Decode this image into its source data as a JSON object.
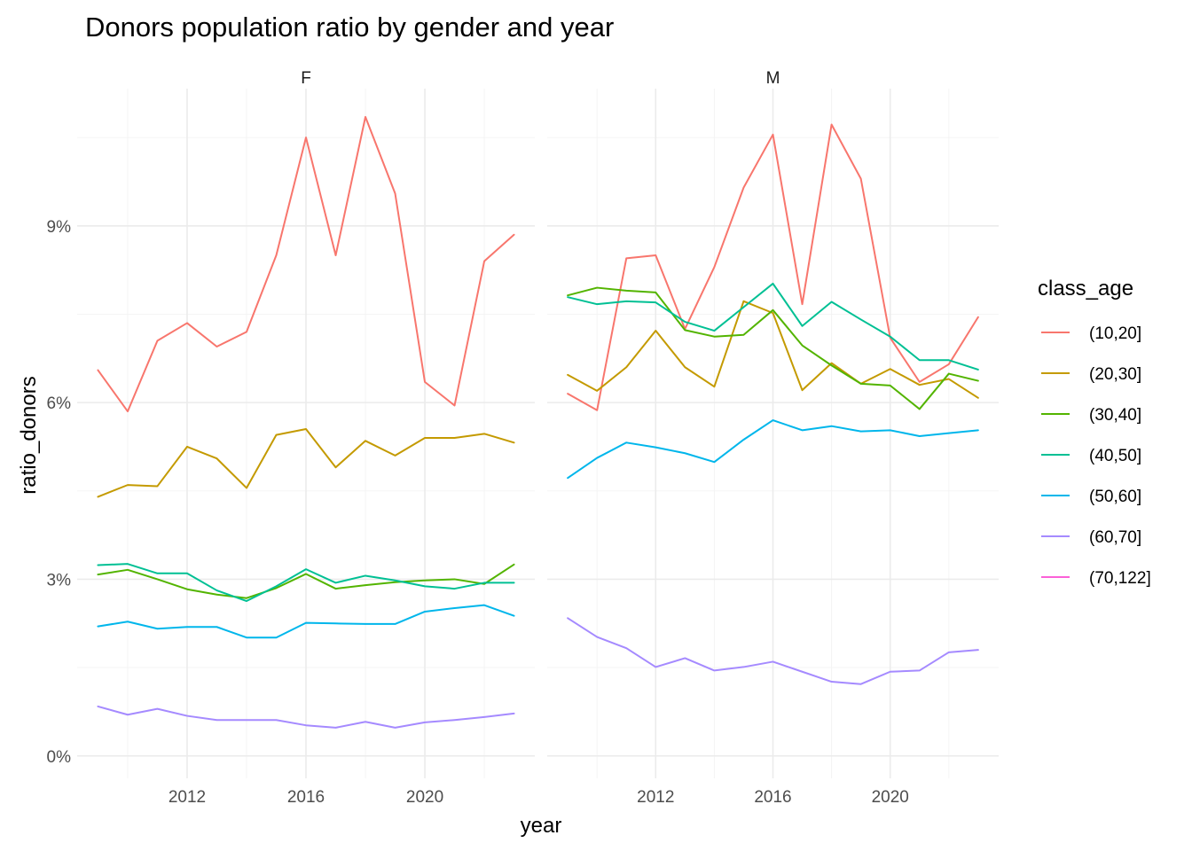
{
  "chart_data": {
    "type": "line",
    "title": "Donors population ratio by gender and year",
    "xlabel": "year",
    "ylabel": "ratio_donors",
    "x": [
      2009,
      2010,
      2011,
      2012,
      2013,
      2014,
      2015,
      2016,
      2017,
      2018,
      2019,
      2020,
      2021,
      2022,
      2023
    ],
    "xlim": [
      2008.3,
      2023.7
    ],
    "x_ticks": [
      2012,
      2016,
      2020
    ],
    "x_tick_labels": [
      "2012",
      "2016",
      "2020"
    ],
    "ylim": [
      -0.0038,
      0.1133
    ],
    "y_ticks": [
      0,
      0.03,
      0.06,
      0.09
    ],
    "y_tick_labels": [
      "0%",
      "3%",
      "6%",
      "9%"
    ],
    "grid": true,
    "legend": {
      "title": "class_age",
      "position": "right",
      "items": [
        "(10,20]",
        "(20,30]",
        "(30,40]",
        "(40,50]",
        "(50,60]",
        "(60,70]",
        "(70,122]"
      ]
    },
    "colors": {
      "(10,20]": "#F8766D",
      "(20,30]": "#C49A00",
      "(30,40]": "#53B400",
      "(40,50]": "#00C094",
      "(50,60]": "#00B6EB",
      "(60,70]": "#A58AFF",
      "(70,122]": "#FB61D7"
    },
    "panels": [
      {
        "label": "F",
        "series": [
          {
            "name": "(10,20]",
            "values": [
              0.0655,
              0.0585,
              0.0705,
              0.0735,
              0.0695,
              0.072,
              0.085,
              0.105,
              0.085,
              0.1085,
              0.0955,
              0.0635,
              0.0595,
              0.084,
              0.0885
            ]
          },
          {
            "name": "(20,30]",
            "values": [
              0.044,
              0.046,
              0.0458,
              0.0525,
              0.0505,
              0.0455,
              0.0545,
              0.0555,
              0.049,
              0.0535,
              0.051,
              0.054,
              0.054,
              0.0547,
              0.0532
            ]
          },
          {
            "name": "(30,40]",
            "values": [
              0.0308,
              0.0316,
              0.03,
              0.0283,
              0.0274,
              0.0268,
              0.0285,
              0.0309,
              0.0284,
              0.029,
              0.0295,
              0.0298,
              0.03,
              0.0292,
              0.0325
            ]
          },
          {
            "name": "(40,50]",
            "values": [
              0.0324,
              0.0326,
              0.031,
              0.031,
              0.0281,
              0.0263,
              0.0288,
              0.0317,
              0.0294,
              0.0306,
              0.0298,
              0.0288,
              0.0284,
              0.0294,
              0.0294
            ]
          },
          {
            "name": "(50,60]",
            "values": [
              0.022,
              0.0228,
              0.0216,
              0.0219,
              0.0219,
              0.0201,
              0.0201,
              0.0226,
              0.0225,
              0.0224,
              0.0224,
              0.0245,
              0.0251,
              0.0256,
              0.0238
            ]
          },
          {
            "name": "(60,70]",
            "values": [
              0.0084,
              0.007,
              0.008,
              0.0068,
              0.0061,
              0.0061,
              0.0061,
              0.0052,
              0.0048,
              0.0058,
              0.0048,
              0.0057,
              0.0061,
              0.0066,
              0.0072
            ]
          }
        ]
      },
      {
        "label": "M",
        "series": [
          {
            "name": "(10,20]",
            "values": [
              0.0615,
              0.0587,
              0.0845,
              0.085,
              0.0725,
              0.083,
              0.0965,
              0.1055,
              0.0767,
              0.1072,
              0.098,
              0.071,
              0.0635,
              0.0665,
              0.0745
            ]
          },
          {
            "name": "(20,30]",
            "values": [
              0.0647,
              0.062,
              0.066,
              0.0722,
              0.066,
              0.0627,
              0.0772,
              0.0752,
              0.0621,
              0.0667,
              0.0632,
              0.0657,
              0.063,
              0.064,
              0.0608
            ]
          },
          {
            "name": "(30,40]",
            "values": [
              0.0782,
              0.0795,
              0.079,
              0.0787,
              0.0723,
              0.0712,
              0.0715,
              0.0757,
              0.0697,
              0.0663,
              0.0632,
              0.0629,
              0.0589,
              0.0649,
              0.0637
            ]
          },
          {
            "name": "(40,50]",
            "values": [
              0.0779,
              0.0767,
              0.0772,
              0.077,
              0.0737,
              0.0722,
              0.0762,
              0.0802,
              0.073,
              0.0771,
              0.0741,
              0.0712,
              0.0672,
              0.0672,
              0.0656
            ]
          },
          {
            "name": "(50,60]",
            "values": [
              0.0472,
              0.0506,
              0.0532,
              0.0524,
              0.0514,
              0.0499,
              0.0537,
              0.057,
              0.0553,
              0.056,
              0.0551,
              0.0553,
              0.0543,
              0.0548,
              0.0553
            ]
          },
          {
            "name": "(60,70]",
            "values": [
              0.0234,
              0.0202,
              0.0183,
              0.0151,
              0.0166,
              0.0145,
              0.0151,
              0.016,
              0.0143,
              0.0126,
              0.0122,
              0.0143,
              0.0145,
              0.0176,
              0.018
            ]
          }
        ]
      }
    ]
  }
}
